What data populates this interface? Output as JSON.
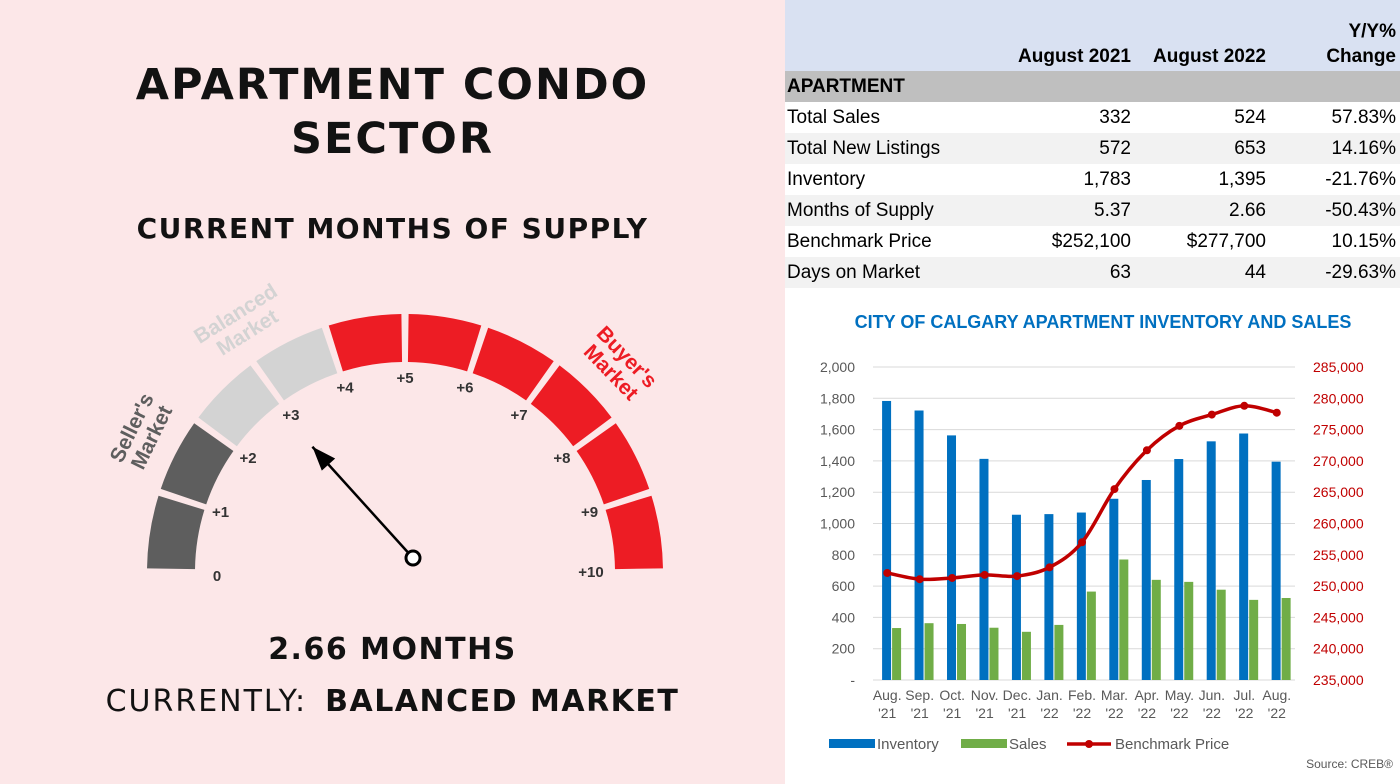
{
  "left": {
    "title_line1": "APARTMENT CONDO",
    "title_line2": "SECTOR",
    "subtitle": "CURRENT MONTHS OF SUPPLY",
    "gauge": {
      "min": 0,
      "max": 10,
      "value": 2.66,
      "tick_labels": [
        "0",
        "+1",
        "+2",
        "+3",
        "+4",
        "+5",
        "+6",
        "+7",
        "+8",
        "+9",
        "+10"
      ],
      "zone_sellers": "Seller's Market",
      "zone_balanced": "Balanced Market",
      "zone_buyers": "Buyer's Market",
      "zone_sellers_lines": [
        "Seller's",
        "Market"
      ],
      "zone_balanced_lines": [
        "Balanced",
        "Market"
      ],
      "zone_buyers_lines": [
        "Buyer's",
        "Market"
      ],
      "colors": {
        "sellers": "#5e5e5e",
        "balanced": "#d3d3d3",
        "buyers": "#ed1c24"
      }
    },
    "months_text": "2.66 MONTHS",
    "currently_label": "CURRENTLY:",
    "currently_value": "BALANCED MARKET"
  },
  "table": {
    "headers": [
      "",
      "August 2021",
      "August 2022",
      "Y/Y% Change"
    ],
    "header_y_line1": "Y/Y%",
    "header_y_line2": "Change",
    "section": "APARTMENT",
    "rows": [
      [
        "Total Sales",
        "332",
        "524",
        "57.83%"
      ],
      [
        "Total New Listings",
        "572",
        "653",
        "14.16%"
      ],
      [
        "Inventory",
        "1,783",
        "1,395",
        "-21.76%"
      ],
      [
        "Months of Supply",
        "5.37",
        "2.66",
        "-50.43%"
      ],
      [
        "Benchmark Price",
        "$252,100",
        "$277,700",
        "10.15%"
      ],
      [
        "Days on Market",
        "63",
        "44",
        "-29.63%"
      ]
    ]
  },
  "chart_data": {
    "type": "bar",
    "title": "CITY OF CALGARY APARTMENT INVENTORY AND SALES",
    "categories": [
      [
        "Aug.",
        "'21"
      ],
      [
        "Sep.",
        "'21"
      ],
      [
        "Oct.",
        "'21"
      ],
      [
        "Nov.",
        "'21"
      ],
      [
        "Dec.",
        "'21"
      ],
      [
        "Jan.",
        "'22"
      ],
      [
        "Feb.",
        "'22"
      ],
      [
        "Mar.",
        "'22"
      ],
      [
        "Apr.",
        "'22"
      ],
      [
        "May.",
        "'22"
      ],
      [
        "Jun.",
        "'22"
      ],
      [
        "Jul.",
        "'22"
      ],
      [
        "Aug.",
        "'22"
      ]
    ],
    "series": [
      {
        "name": "Inventory",
        "type": "bar",
        "axis": "left",
        "color": "#0070c0",
        "values": [
          1783,
          1722,
          1563,
          1413,
          1056,
          1060,
          1070,
          1158,
          1278,
          1412,
          1525,
          1575,
          1395
        ]
      },
      {
        "name": "Sales",
        "type": "bar",
        "axis": "left",
        "color": "#70ad47",
        "values": [
          332,
          363,
          358,
          334,
          308,
          352,
          565,
          770,
          640,
          627,
          577,
          512,
          524
        ]
      },
      {
        "name": "Benchmark Price",
        "type": "line",
        "axis": "right",
        "color": "#c00000",
        "values": [
          252100,
          251100,
          251300,
          251800,
          251600,
          253000,
          257000,
          265500,
          271700,
          275600,
          277400,
          278800,
          277700
        ]
      }
    ],
    "y_left": {
      "min": 0,
      "max": 2000,
      "step": 200,
      "tick_labels": [
        "-",
        "200",
        "400",
        "600",
        "800",
        "1,000",
        "1,200",
        "1,400",
        "1,600",
        "1,800",
        "2,000"
      ]
    },
    "y_right": {
      "min": 235000,
      "max": 285000,
      "step": 5000,
      "tick_labels": [
        "235,000",
        "240,000",
        "245,000",
        "250,000",
        "255,000",
        "260,000",
        "265,000",
        "270,000",
        "275,000",
        "280,000",
        "285,000"
      ]
    },
    "grid": true,
    "legend_position": "bottom",
    "source": "Source: CREB®",
    "colors": {
      "title": "#0070c0",
      "right_axis": "#c00000",
      "grid": "#d9d9d9",
      "axis_text": "#595959"
    }
  }
}
